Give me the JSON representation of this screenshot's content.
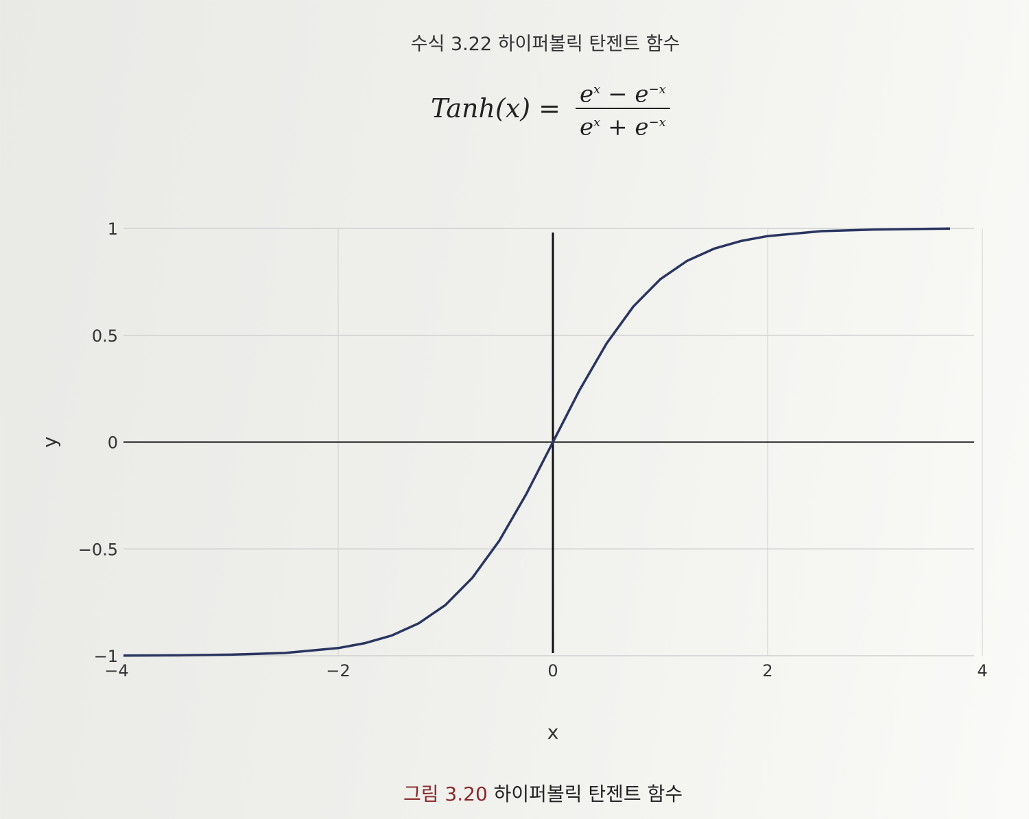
{
  "equation": {
    "title": "수식 3.22 하이퍼볼릭 탄젠트 함수",
    "lhs": "Tanh(x) =",
    "numerator": {
      "base1": "e",
      "exp1": "x",
      "op": " − ",
      "base2": "e",
      "exp2": "−x"
    },
    "denominator": {
      "base1": "e",
      "exp1": "x",
      "op": " + ",
      "base2": "e",
      "exp2": "−x"
    }
  },
  "caption": {
    "label": "그림 3.20",
    "text": " 하이퍼볼릭 탄젠트 함수"
  },
  "colors": {
    "curve": "#2a3560",
    "grid": "#cfcfcf",
    "axis": "#111111"
  },
  "chart_data": {
    "type": "line",
    "function": "tanh",
    "xlabel": "x",
    "ylabel": "y",
    "xlim": [
      -4,
      4
    ],
    "ylim": [
      -1,
      1
    ],
    "xticks": [
      -4,
      -2,
      0,
      2,
      4
    ],
    "xtick_labels": [
      "−4",
      "−2",
      "0",
      "2",
      "4"
    ],
    "yticks": [
      -1,
      -0.5,
      0,
      0.5,
      1
    ],
    "ytick_labels": [
      "−1",
      "−0.5",
      "0",
      "0.5",
      "1"
    ],
    "grid": true,
    "legend": "none",
    "series": [
      {
        "x": [
          -4,
          -3.5,
          -3,
          -2.5,
          -2,
          -1.75,
          -1.5,
          -1.25,
          -1,
          -0.75,
          -0.5,
          -0.25,
          0,
          0.25,
          0.5,
          0.75,
          1,
          1.25,
          1.5,
          1.75,
          2,
          2.5,
          3,
          3.5,
          3.7
        ],
        "y": [
          -0.999,
          -0.998,
          -0.995,
          -0.987,
          -0.964,
          -0.941,
          -0.905,
          -0.848,
          -0.762,
          -0.635,
          -0.462,
          -0.245,
          0,
          0.245,
          0.462,
          0.635,
          0.762,
          0.848,
          0.905,
          0.941,
          0.964,
          0.987,
          0.995,
          0.998,
          0.999
        ]
      }
    ]
  }
}
